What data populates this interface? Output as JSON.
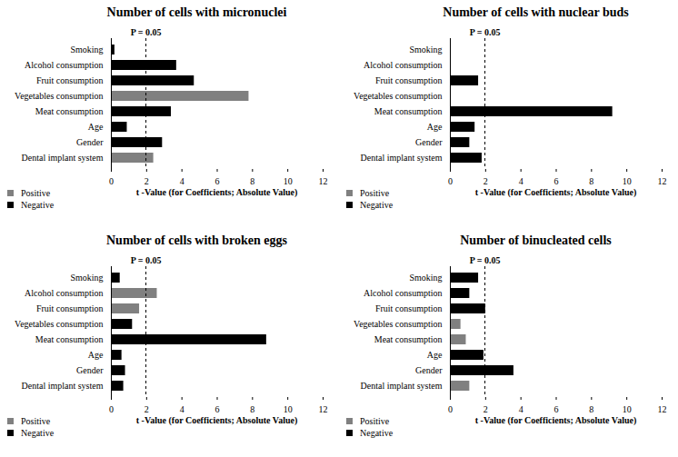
{
  "chart_data": [
    {
      "type": "bar",
      "orientation": "horizontal",
      "title": "Number of cells with micronuclei",
      "categories": [
        "Smoking",
        "Alcohol consumption",
        "Fruit consumption",
        "Vegetables consumption",
        "Meat consumption",
        "Age",
        "Gender",
        "Dental implant system"
      ],
      "series": [
        {
          "name": "Positive",
          "color": "#808080",
          "values": [
            null,
            null,
            null,
            7.8,
            null,
            null,
            null,
            2.4
          ]
        },
        {
          "name": "Negative",
          "color": "#000000",
          "values": [
            0.2,
            3.7,
            4.7,
            null,
            3.4,
            0.9,
            2.9,
            null
          ]
        }
      ],
      "xlabel": "t -Value (for Coefficients; Absolute Value)",
      "xlim": [
        0,
        12
      ],
      "xticks": [
        0,
        2,
        4,
        6,
        8,
        10,
        12
      ],
      "annotations": [
        {
          "value": 1.96,
          "label": "P = 0.05"
        }
      ],
      "legend": "bottom-left",
      "grid": false
    },
    {
      "type": "bar",
      "orientation": "horizontal",
      "title": "Number of cells with nuclear buds",
      "categories": [
        "Smoking",
        "Alcohol consumption",
        "Fruit consumption",
        "Vegetables consumption",
        "Meat consumption",
        "Age",
        "Gender",
        "Dental implant system"
      ],
      "series": [
        {
          "name": "Positive",
          "color": "#808080",
          "values": [
            0.05,
            null,
            null,
            0.05,
            null,
            null,
            null,
            null
          ]
        },
        {
          "name": "Negative",
          "color": "#000000",
          "values": [
            null,
            0.05,
            1.6,
            null,
            9.2,
            1.4,
            1.1,
            1.8
          ]
        }
      ],
      "xlabel": "t -Value (for Coefficients; Absolute Value)",
      "xlim": [
        0,
        12
      ],
      "xticks": [
        0,
        2,
        4,
        6,
        8,
        10,
        12
      ],
      "annotations": [
        {
          "value": 1.96,
          "label": "P = 0.05"
        }
      ],
      "legend": "bottom-left",
      "grid": false
    },
    {
      "type": "bar",
      "orientation": "horizontal",
      "title": "Number of cells with broken eggs",
      "categories": [
        "Smoking",
        "Alcohol consumption",
        "Fruit consumption",
        "Vegetables consumption",
        "Meat consumption",
        "Age",
        "Gender",
        "Dental implant system"
      ],
      "series": [
        {
          "name": "Positive",
          "color": "#808080",
          "values": [
            null,
            2.6,
            1.6,
            null,
            null,
            null,
            null,
            null
          ]
        },
        {
          "name": "Negative",
          "color": "#000000",
          "values": [
            0.5,
            null,
            null,
            1.2,
            8.8,
            0.6,
            0.8,
            0.7
          ]
        }
      ],
      "xlabel": "t -Value (for Coefficients; Absolute Value)",
      "xlim": [
        0,
        12
      ],
      "xticks": [
        0,
        2,
        4,
        6,
        8,
        10,
        12
      ],
      "annotations": [
        {
          "value": 1.96,
          "label": "P = 0.05"
        }
      ],
      "legend": "bottom-left",
      "grid": false
    },
    {
      "type": "bar",
      "orientation": "horizontal",
      "title": "Number of binucleated cells",
      "categories": [
        "Smoking",
        "Alcohol consumption",
        "Fruit consumption",
        "Vegetables consumption",
        "Meat consumption",
        "Age",
        "Gender",
        "Dental implant system"
      ],
      "series": [
        {
          "name": "Positive",
          "color": "#808080",
          "values": [
            null,
            null,
            null,
            0.6,
            0.9,
            null,
            null,
            1.1
          ]
        },
        {
          "name": "Negative",
          "color": "#000000",
          "values": [
            1.6,
            1.1,
            2.0,
            null,
            null,
            1.9,
            3.6,
            null
          ]
        }
      ],
      "xlabel": "t -Value (for Coefficients; Absolute Value)",
      "xlim": [
        0,
        12
      ],
      "xticks": [
        0,
        2,
        4,
        6,
        8,
        10,
        12
      ],
      "annotations": [
        {
          "value": 1.96,
          "label": "P = 0.05"
        }
      ],
      "legend": "bottom-left",
      "grid": false
    }
  ]
}
